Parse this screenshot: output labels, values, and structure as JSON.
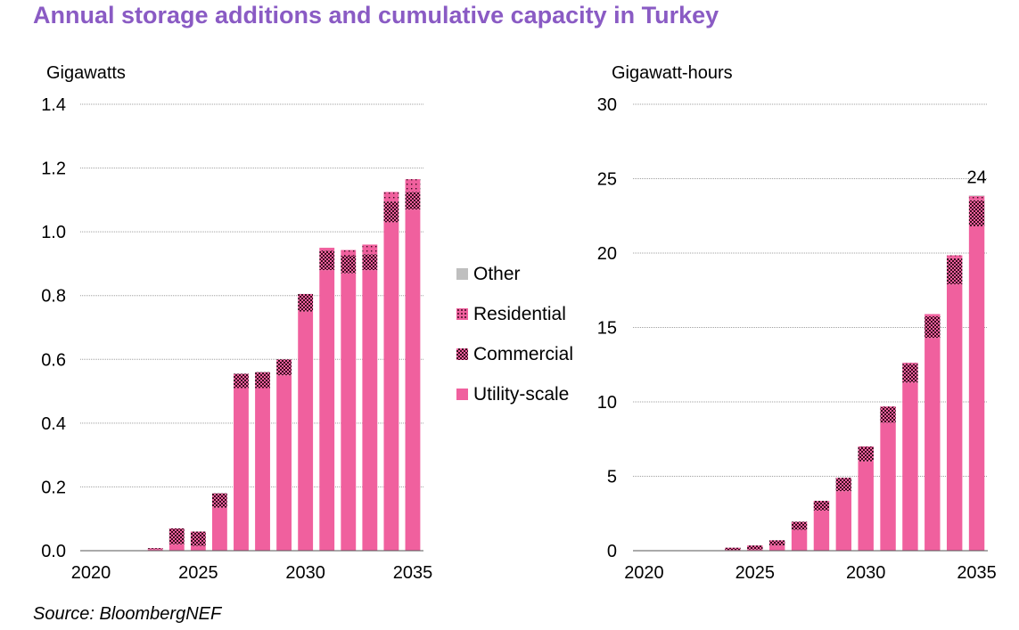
{
  "title": "Annual storage additions and cumulative capacity in Turkey",
  "source": "Source: BloombergNEF",
  "colors": {
    "utility": "#f0609e",
    "commercial": "#6e1b3a",
    "residential": "#f0609e",
    "other": "#bfbfbf",
    "grid": "#a0a0a0",
    "title": "#8a5bc4"
  },
  "legend": [
    {
      "key": "other",
      "label": "Other"
    },
    {
      "key": "residential",
      "label": "Residential"
    },
    {
      "key": "commercial",
      "label": "Commercial"
    },
    {
      "key": "utility",
      "label": "Utility-scale"
    }
  ],
  "chart_data": [
    {
      "type": "bar",
      "stacked": true,
      "ylabel": "Gigawatts",
      "ylim": [
        0,
        1.4
      ],
      "yticks": [
        "0.0",
        "0.2",
        "0.4",
        "0.6",
        "0.8",
        "1.0",
        "1.2",
        "1.4"
      ],
      "xticks": [
        "2020",
        "2025",
        "2030",
        "2035"
      ],
      "categories": [
        "2020",
        "2021",
        "2022",
        "2023",
        "2024",
        "2025",
        "2026",
        "2027",
        "2028",
        "2029",
        "2030",
        "2031",
        "2032",
        "2033",
        "2034",
        "2035"
      ],
      "series": [
        {
          "name": "Utility-scale",
          "key": "utility",
          "values": [
            0,
            0,
            0,
            0.005,
            0.02,
            0.015,
            0.135,
            0.51,
            0.51,
            0.55,
            0.75,
            0.88,
            0.87,
            0.88,
            1.03,
            1.07
          ]
        },
        {
          "name": "Commercial",
          "key": "commercial",
          "values": [
            0,
            0,
            0,
            0.003,
            0.05,
            0.045,
            0.045,
            0.045,
            0.05,
            0.05,
            0.055,
            0.06,
            0.055,
            0.05,
            0.065,
            0.055
          ]
        },
        {
          "name": "Residential",
          "key": "residential",
          "values": [
            0,
            0,
            0,
            0,
            0,
            0,
            0,
            0,
            0,
            0,
            0,
            0.01,
            0.018,
            0.03,
            0.03,
            0.04
          ]
        },
        {
          "name": "Other",
          "key": "other",
          "values": [
            0,
            0,
            0,
            0,
            0,
            0,
            0,
            0,
            0,
            0,
            0,
            0,
            0,
            0,
            0,
            0
          ]
        }
      ]
    },
    {
      "type": "bar",
      "stacked": true,
      "ylabel": "Gigawatt-hours",
      "ylim": [
        0,
        30
      ],
      "yticks": [
        "0",
        "5",
        "10",
        "15",
        "20",
        "25",
        "30"
      ],
      "xticks": [
        "2020",
        "2025",
        "2030",
        "2035"
      ],
      "annotations": [
        {
          "category": "2035",
          "text": "24"
        }
      ],
      "categories": [
        "2020",
        "2021",
        "2022",
        "2023",
        "2024",
        "2025",
        "2026",
        "2027",
        "2028",
        "2029",
        "2030",
        "2031",
        "2032",
        "2033",
        "2034",
        "2035"
      ],
      "series": [
        {
          "name": "Utility-scale",
          "key": "utility",
          "values": [
            0,
            0,
            0,
            0.02,
            0.05,
            0.08,
            0.35,
            1.4,
            2.7,
            4.0,
            6.0,
            8.6,
            11.3,
            14.3,
            17.9,
            21.8
          ]
        },
        {
          "name": "Commercial",
          "key": "commercial",
          "values": [
            0,
            0,
            0,
            0.01,
            0.15,
            0.27,
            0.35,
            0.55,
            0.65,
            0.9,
            1.0,
            1.05,
            1.25,
            1.45,
            1.75,
            1.75
          ]
        },
        {
          "name": "Residential",
          "key": "residential",
          "values": [
            0,
            0,
            0,
            0,
            0,
            0,
            0,
            0,
            0,
            0,
            0.01,
            0.05,
            0.08,
            0.15,
            0.2,
            0.3
          ]
        },
        {
          "name": "Other",
          "key": "other",
          "values": [
            0,
            0,
            0,
            0,
            0,
            0,
            0,
            0,
            0,
            0,
            0,
            0,
            0,
            0,
            0,
            0.02
          ]
        }
      ]
    }
  ]
}
